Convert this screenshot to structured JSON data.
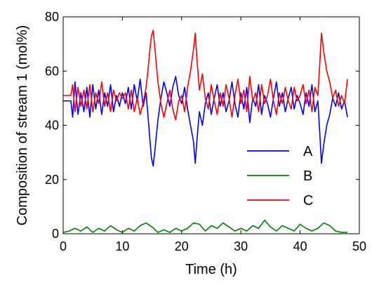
{
  "chart_data": {
    "type": "line",
    "title": "",
    "xlabel": "Time (h)",
    "ylabel": "Composition of stream 1 (mol%)",
    "xlim": [
      0,
      50
    ],
    "ylim": [
      0,
      80
    ],
    "xticks": [
      0,
      10,
      20,
      30,
      40,
      50
    ],
    "yticks": [
      0,
      20,
      40,
      60,
      80
    ],
    "grid": false,
    "legend_position": "center-right",
    "series": [
      {
        "name": "A",
        "color": "#0000ff",
        "x": [
          0,
          1.3,
          1.6,
          2,
          2.5,
          3,
          3.5,
          4,
          4.5,
          5,
          5.5,
          6,
          6.5,
          7,
          7.5,
          8,
          8.5,
          9,
          9.5,
          10,
          10.5,
          11,
          11.5,
          12,
          12.5,
          13,
          13.5,
          14,
          14.3,
          14.6,
          14.9,
          15.2,
          15.5,
          16,
          16.5,
          17,
          17.5,
          18,
          18.5,
          19,
          19.5,
          20,
          20.5,
          21,
          21.5,
          22,
          22.3,
          22.6,
          23,
          23.5,
          24,
          24.5,
          25,
          25.5,
          26,
          26.5,
          27,
          27.5,
          28,
          28.5,
          29,
          29.5,
          30,
          30.5,
          31,
          31.5,
          32,
          32.5,
          33,
          33.5,
          34,
          34.5,
          35,
          35.5,
          36,
          36.5,
          37,
          37.5,
          38,
          38.5,
          39,
          39.5,
          40,
          40.5,
          41,
          41.5,
          42,
          42.5,
          43,
          43.3,
          43.6,
          44,
          44.5,
          45,
          45.5,
          46,
          46.5,
          47,
          47.5,
          48
        ],
        "values": [
          49,
          49,
          43,
          56,
          44,
          52,
          45,
          54,
          43,
          55,
          46,
          53,
          44,
          52,
          47,
          55,
          45,
          51,
          47,
          52,
          48,
          54,
          46,
          55,
          49,
          57,
          47,
          52,
          44,
          36,
          28,
          25,
          31,
          42,
          50,
          56,
          52,
          47,
          54,
          58,
          51,
          48,
          54,
          46,
          40,
          34,
          26,
          35,
          45,
          40,
          48,
          52,
          44,
          50,
          55,
          47,
          52,
          45,
          49,
          56,
          48,
          43,
          52,
          46,
          54,
          41,
          50,
          47,
          55,
          44,
          51,
          48,
          43,
          50,
          56,
          47,
          52,
          45,
          50,
          54,
          46,
          51,
          48,
          44,
          52,
          47,
          55,
          45,
          49,
          38,
          26,
          33,
          40,
          44,
          50,
          47,
          52,
          46,
          49,
          43
        ]
      },
      {
        "name": "B",
        "color": "#008000",
        "x": [
          0,
          1,
          2,
          3,
          4,
          5,
          6,
          7,
          8,
          9,
          10,
          11,
          12,
          13,
          14,
          15,
          16,
          17,
          18,
          19,
          20,
          21,
          22,
          23,
          24,
          25,
          26,
          27,
          28,
          29,
          30,
          31,
          32,
          33,
          34,
          35,
          36,
          37,
          38,
          39,
          40,
          41,
          42,
          43,
          44,
          45,
          46,
          47,
          48
        ],
        "values": [
          0.5,
          1,
          2,
          1,
          2.5,
          0.5,
          2,
          1,
          3,
          1.5,
          0.5,
          2,
          1,
          3,
          4,
          2.5,
          0.5,
          1.5,
          0.5,
          2,
          1,
          2,
          4,
          3.5,
          1,
          3,
          2,
          4,
          2.5,
          1,
          2,
          1,
          3,
          2,
          5,
          2.5,
          1,
          3,
          2,
          1,
          3.5,
          2,
          1,
          2,
          4,
          3,
          1,
          0.5,
          0.5
        ]
      },
      {
        "name": "C",
        "color": "#ff0000",
        "x": [
          0,
          1.3,
          1.6,
          2,
          2.5,
          3,
          3.5,
          4,
          4.5,
          5,
          5.5,
          6,
          6.5,
          7,
          7.5,
          8,
          8.5,
          9,
          9.5,
          10,
          10.5,
          11,
          11.5,
          12,
          12.5,
          13,
          13.5,
          14,
          14.3,
          14.6,
          14.9,
          15.2,
          15.5,
          16,
          16.5,
          17,
          17.5,
          18,
          18.5,
          19,
          19.5,
          20,
          20.5,
          21,
          21.5,
          22,
          22.3,
          22.6,
          23,
          23.5,
          24,
          24.5,
          25,
          25.5,
          26,
          26.5,
          27,
          27.5,
          28,
          28.5,
          29,
          29.5,
          30,
          30.5,
          31,
          31.5,
          32,
          32.5,
          33,
          33.5,
          34,
          34.5,
          35,
          35.5,
          36,
          36.5,
          37,
          37.5,
          38,
          38.5,
          39,
          39.5,
          40,
          40.5,
          41,
          41.5,
          42,
          42.5,
          43,
          43.3,
          43.6,
          44,
          44.5,
          45,
          45.5,
          46,
          46.5,
          47,
          47.5,
          48
        ],
        "values": [
          51,
          51,
          55,
          45,
          54,
          47,
          53,
          46,
          55,
          45,
          52,
          48,
          56,
          47,
          52,
          45,
          53,
          49,
          52,
          50,
          52,
          46,
          53,
          45,
          50,
          44,
          48,
          54,
          60,
          67,
          73,
          75,
          68,
          56,
          48,
          43,
          48,
          53,
          46,
          42,
          49,
          51,
          45,
          54,
          60,
          68,
          74,
          64,
          53,
          59,
          50,
          46,
          55,
          49,
          44,
          52,
          47,
          55,
          50,
          43,
          51,
          57,
          48,
          53,
          45,
          58,
          49,
          52,
          45,
          55,
          48,
          51,
          57,
          49,
          44,
          52,
          48,
          54,
          49,
          46,
          54,
          49,
          51,
          55,
          48,
          53,
          45,
          54,
          51,
          62,
          74,
          67,
          60,
          56,
          50,
          53,
          47,
          51,
          48,
          57
        ]
      }
    ]
  }
}
